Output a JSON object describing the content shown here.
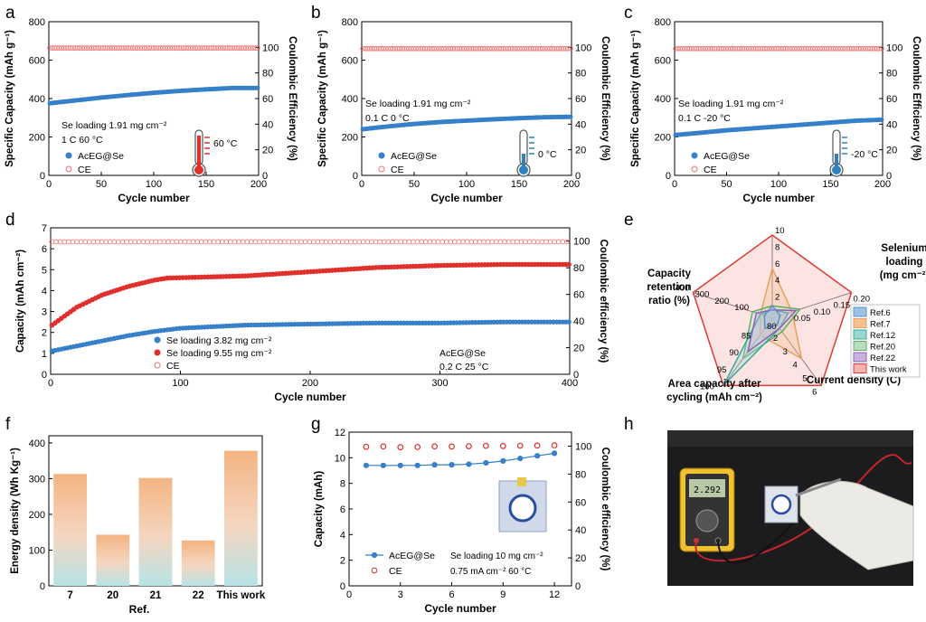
{
  "panel_letters": {
    "a": "a",
    "b": "b",
    "c": "c",
    "d": "d",
    "e": "e",
    "f": "f",
    "g": "g",
    "h": "h"
  },
  "colors": {
    "blue": "#2f7fc1",
    "blue_fill": "#3a7fd0",
    "red": "#e0302c",
    "ce_red": "#f06f6f",
    "radar_red": "#e03b35",
    "radar_orange": "#e8a060"
  },
  "icons": {
    "a": "thermometer-hot-icon",
    "b": "thermometer-cold-icon",
    "c": "thermometer-cold-icon",
    "g": "pouch-cell-icon"
  },
  "photo": {
    "meter_reading": "2.292"
  },
  "chart_data": [
    {
      "panel": "a",
      "type": "scatter",
      "xlabel": "Cycle number",
      "ylabel": "Specific Capacity (mAh g⁻¹)",
      "y2label": "Coulombic Efficiency (%)",
      "xlim": [
        0,
        200
      ],
      "ylim": [
        0,
        800
      ],
      "y2lim": [
        0,
        120
      ],
      "xticks": [
        0,
        50,
        100,
        150,
        200
      ],
      "yticks": [
        0,
        200,
        400,
        600,
        800
      ],
      "y2ticks": [
        0,
        20,
        40,
        60,
        80,
        100
      ],
      "annotations": [
        "Se loading 1.91 mg cm⁻²",
        "1 C  60 °C"
      ],
      "temp_label": "60 °C",
      "series": [
        {
          "name": "AcEG@Se",
          "axis": "left",
          "x": [
            0,
            25,
            50,
            75,
            100,
            125,
            150,
            175,
            200
          ],
          "y": [
            375,
            390,
            405,
            418,
            430,
            440,
            448,
            455,
            455
          ]
        },
        {
          "name": "CE",
          "axis": "right",
          "x": [
            0,
            200
          ],
          "y": [
            99.5,
            99.5
          ]
        }
      ]
    },
    {
      "panel": "b",
      "type": "scatter",
      "xlabel": "Cycle number",
      "ylabel": "Specific Capacity (mAh g⁻¹)",
      "y2label": "Coulombic Efficiency (%)",
      "xlim": [
        0,
        200
      ],
      "ylim": [
        0,
        800
      ],
      "y2lim": [
        0,
        120
      ],
      "xticks": [
        0,
        50,
        100,
        150,
        200
      ],
      "yticks": [
        0,
        200,
        400,
        600,
        800
      ],
      "y2ticks": [
        0,
        20,
        40,
        60,
        80,
        100
      ],
      "annotations": [
        "Se loading 1.91 mg cm⁻²",
        "0.1 C   0 °C"
      ],
      "temp_label": "0 °C",
      "series": [
        {
          "name": "AcEG@Se",
          "axis": "left",
          "x": [
            0,
            25,
            50,
            75,
            100,
            125,
            150,
            175,
            200
          ],
          "y": [
            240,
            255,
            268,
            278,
            285,
            292,
            298,
            303,
            305
          ]
        },
        {
          "name": "CE",
          "axis": "right",
          "x": [
            0,
            200
          ],
          "y": [
            99,
            99
          ]
        }
      ]
    },
    {
      "panel": "c",
      "type": "scatter",
      "xlabel": "Cycle number",
      "ylabel": "Specific Capacity (mAh g⁻¹)",
      "y2label": "Coulombic Efficiency (%)",
      "xlim": [
        0,
        200
      ],
      "ylim": [
        0,
        800
      ],
      "y2lim": [
        0,
        120
      ],
      "xticks": [
        0,
        50,
        100,
        150,
        200
      ],
      "yticks": [
        0,
        200,
        400,
        600,
        800
      ],
      "y2ticks": [
        0,
        20,
        40,
        60,
        80,
        100
      ],
      "annotations": [
        "Se loading 1.91 mg cm⁻²",
        "0.1 C  -20 °C"
      ],
      "temp_label": "-20 °C",
      "series": [
        {
          "name": "AcEG@Se",
          "axis": "left",
          "x": [
            0,
            25,
            50,
            75,
            100,
            125,
            150,
            175,
            200
          ],
          "y": [
            210,
            222,
            235,
            245,
            255,
            265,
            275,
            285,
            290
          ]
        },
        {
          "name": "CE",
          "axis": "right",
          "x": [
            0,
            200
          ],
          "y": [
            99,
            99
          ]
        }
      ]
    },
    {
      "panel": "d",
      "type": "scatter",
      "xlabel": "Cycle number",
      "ylabel": "Capacity (mAh cm⁻²)",
      "y2label": "Coulombic efficiency (%)",
      "xlim": [
        0,
        400
      ],
      "ylim": [
        0,
        7
      ],
      "y2lim": [
        0,
        110
      ],
      "xticks": [
        0,
        100,
        200,
        300,
        400
      ],
      "yticks": [
        0,
        1,
        2,
        3,
        4,
        5,
        6,
        7
      ],
      "y2ticks": [
        0,
        20,
        40,
        60,
        80,
        100
      ],
      "annotations": [
        "AcEG@Se",
        "0.2 C   25 °C"
      ],
      "series": [
        {
          "name": "Se loading 3.82 mg cm⁻²",
          "axis": "left",
          "x": [
            0,
            20,
            40,
            60,
            80,
            100,
            150,
            200,
            250,
            300,
            350,
            400
          ],
          "y": [
            1.1,
            1.35,
            1.6,
            1.85,
            2.05,
            2.2,
            2.35,
            2.4,
            2.45,
            2.45,
            2.5,
            2.5
          ]
        },
        {
          "name": "Se loading 9.55 mg cm⁻²",
          "axis": "left",
          "x": [
            0,
            20,
            40,
            60,
            80,
            90,
            150,
            200,
            250,
            300,
            350,
            400
          ],
          "y": [
            2.3,
            3.2,
            3.8,
            4.2,
            4.5,
            4.6,
            4.7,
            4.9,
            5.1,
            5.2,
            5.25,
            5.25
          ]
        },
        {
          "name": "CE",
          "axis": "right",
          "x": [
            0,
            400
          ],
          "y": [
            99.5,
            99.5
          ]
        }
      ]
    },
    {
      "panel": "e",
      "type": "radar",
      "axes": [
        {
          "label": [
            "Selenium",
            "loading",
            "(mg cm⁻²)"
          ],
          "ticks": [
            "2",
            "4",
            "6",
            "8",
            "10"
          ]
        },
        {
          "label": [
            "Current density (C)"
          ],
          "ticks": [
            "0.05",
            "0.10",
            "0.15",
            "0.20"
          ]
        },
        {
          "label": [
            "Area capacity after",
            "cycling (mAh cm⁻²)"
          ],
          "ticks": [
            "2",
            "3",
            "4",
            "5",
            "6"
          ]
        },
        {
          "label": [
            "Capacity",
            "retention",
            "ratio (%)"
          ],
          "ticks": [
            "85",
            "90",
            "95",
            "100"
          ]
        },
        {
          "label": [],
          "ticks": [
            "100",
            "200",
            "300",
            "400"
          ]
        }
      ],
      "center_tick": "80",
      "series": [
        {
          "name": "Ref.6",
          "values": [
            0.15,
            0.1,
            0.1,
            0.15,
            0.1
          ]
        },
        {
          "name": "Ref.7",
          "values": [
            0.6,
            0.25,
            0.6,
            0.25,
            0.15
          ]
        },
        {
          "name": "Ref.12",
          "values": [
            0.1,
            0.2,
            0.15,
            1.0,
            0.15
          ]
        },
        {
          "name": "Ref.20",
          "values": [
            0.15,
            0.35,
            0.2,
            0.6,
            0.25
          ]
        },
        {
          "name": "Ref.22",
          "values": [
            0.1,
            0.3,
            0.15,
            0.5,
            0.2
          ]
        },
        {
          "name": "This work",
          "values": [
            1.0,
            1.0,
            1.0,
            1.0,
            1.0
          ]
        }
      ]
    },
    {
      "panel": "f",
      "type": "bar",
      "categories": [
        "7",
        "20",
        "21",
        "22",
        "This work"
      ],
      "values": [
        313,
        143,
        302,
        127,
        378
      ],
      "xlabel": "Ref.",
      "ylabel": "Energy density (Wh Kg⁻¹)",
      "ylim": [
        0,
        420
      ],
      "yticks": [
        0,
        100,
        200,
        300,
        400
      ]
    },
    {
      "panel": "g",
      "type": "line",
      "xlabel": "Cycle number",
      "ylabel": "Capacity (mAh)",
      "y2label": "Coulombic efficiency (%)",
      "xlim": [
        0,
        13
      ],
      "ylim": [
        0,
        12
      ],
      "y2lim": [
        0,
        110
      ],
      "xticks": [
        0,
        3,
        6,
        9,
        12
      ],
      "yticks": [
        0,
        2,
        4,
        6,
        8,
        10,
        12
      ],
      "y2ticks": [
        0,
        20,
        40,
        60,
        80,
        100
      ],
      "annotations": [
        "Se loading 10 mg cm⁻²",
        "0.75 mA cm⁻²    60 °C"
      ],
      "series": [
        {
          "name": "AcEG@Se",
          "axis": "left",
          "x": [
            1,
            2,
            3,
            4,
            5,
            6,
            7,
            8,
            9,
            10,
            11,
            12
          ],
          "y": [
            9.4,
            9.4,
            9.4,
            9.4,
            9.45,
            9.45,
            9.5,
            9.6,
            9.75,
            9.95,
            10.15,
            10.35
          ]
        },
        {
          "name": "CE",
          "axis": "right",
          "x": [
            1,
            2,
            3,
            4,
            5,
            6,
            7,
            8,
            9,
            10,
            11,
            12
          ],
          "y": [
            99.5,
            99.8,
            99.2,
            99.4,
            99.8,
            99.7,
            99.9,
            100.2,
            100.1,
            100.3,
            100.4,
            100.6
          ]
        }
      ]
    }
  ]
}
